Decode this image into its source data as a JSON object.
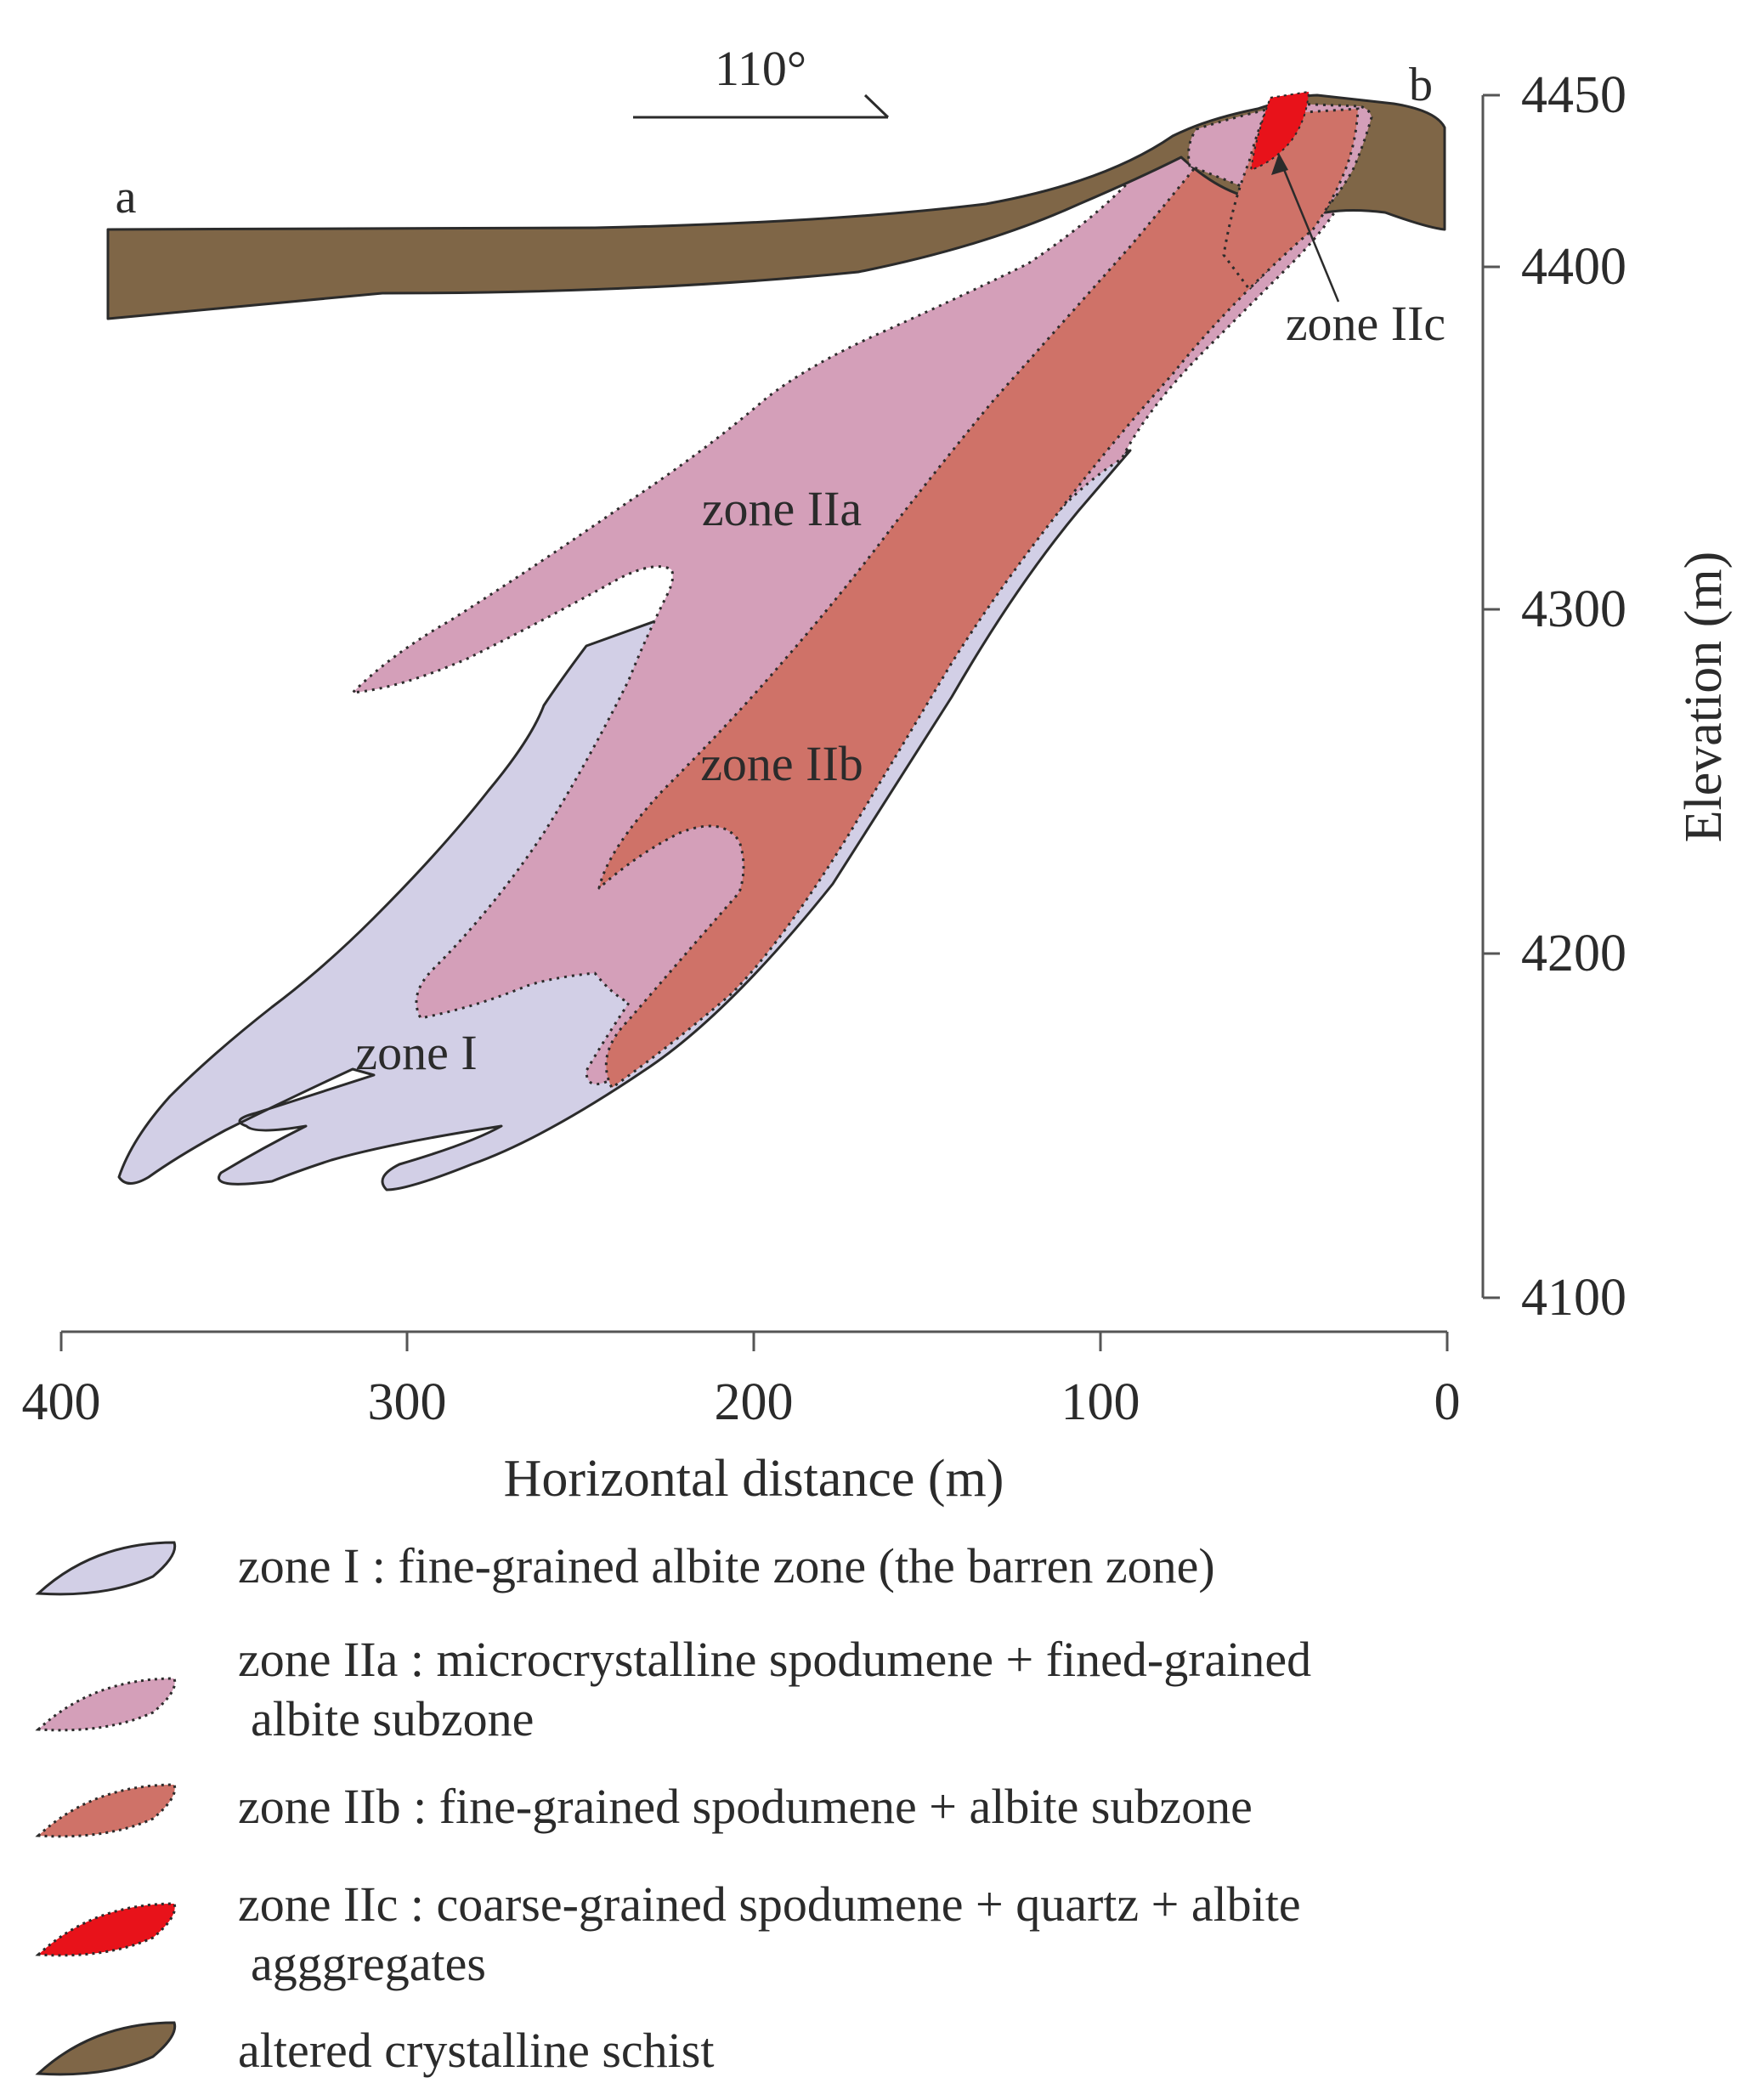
{
  "section": {
    "direction_label": "110°",
    "point_a": "a",
    "point_b": "b"
  },
  "elevation_axis": {
    "title": "Elevation (m)",
    "ticks": [
      "4450",
      "4400",
      "4300",
      "4200",
      "4100"
    ]
  },
  "distance_axis": {
    "title": "Horizontal distance (m)",
    "ticks": [
      "400",
      "300",
      "200",
      "100",
      "0"
    ]
  },
  "zone_labels": {
    "zone_1": "zone I",
    "zone_2a": "zone IIa",
    "zone_2b": "zone IIb",
    "zone_2c": "zone IIc"
  },
  "legend": {
    "items": [
      {
        "lines": [
          "zone I : fine-grained albite zone (the barren zone)"
        ],
        "fill": "#d2cfe6",
        "style": "solid"
      },
      {
        "lines": [
          "zone IIa : microcrystalline spodumene + fined-grained",
          "albite subzone"
        ],
        "fill": "#d49fb9",
        "style": "dotted"
      },
      {
        "lines": [
          "zone IIb : fine-grained spodumene + albite subzone"
        ],
        "fill": "#cf7268",
        "style": "dotted"
      },
      {
        "lines": [
          "zone IIc : coarse-grained spodumene + quartz + albite",
          "agggregates"
        ],
        "fill": "#e8121a",
        "style": "dotted"
      },
      {
        "lines": [
          "altered crystalline schist"
        ],
        "fill": "#7f6647",
        "style": "solid"
      }
    ]
  },
  "colors": {
    "zone_1": "#d2cfe6",
    "zone_2a": "#d49fb9",
    "zone_2b": "#cf7268",
    "zone_2c": "#e8121a",
    "schist": "#7f6647",
    "outline": "#2b2b2b"
  }
}
